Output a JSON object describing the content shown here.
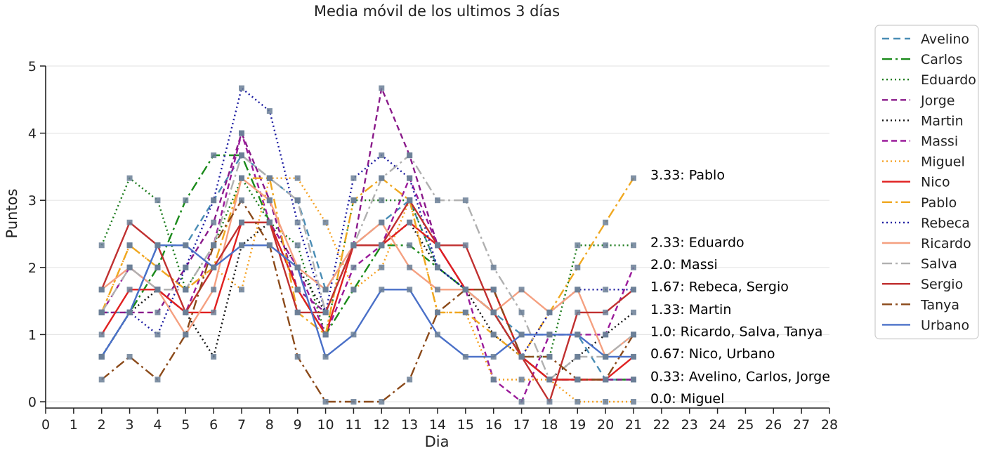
{
  "chart_data": {
    "type": "line",
    "title": "Media móvil de los ultimos 3 días",
    "xlabel": "Dia",
    "ylabel": "Puntos",
    "xlim": [
      0,
      28
    ],
    "ylim": [
      0,
      5
    ],
    "x_ticks": [
      0,
      1,
      2,
      3,
      4,
      5,
      6,
      7,
      8,
      9,
      10,
      11,
      12,
      13,
      14,
      15,
      16,
      17,
      18,
      19,
      20,
      21,
      22,
      23,
      24,
      25,
      26,
      27,
      28
    ],
    "y_ticks": [
      0,
      1,
      2,
      3,
      4,
      5
    ],
    "grid": "horizontal",
    "legend_position": "outside-right",
    "x": [
      2,
      3,
      4,
      5,
      6,
      7,
      8,
      9,
      10,
      11,
      12,
      13,
      14,
      15,
      16,
      17,
      18,
      19,
      20,
      21
    ],
    "series": [
      {
        "name": "Avelino",
        "color": "#4a8db5",
        "dash": "10,6",
        "values": [
          1.33,
          1.33,
          2.33,
          2.33,
          3.0,
          3.67,
          3.33,
          3.0,
          1.67,
          2.33,
          2.67,
          3.0,
          2.0,
          1.67,
          1.33,
          1.0,
          1.0,
          1.0,
          0.33,
          0.33
        ]
      },
      {
        "name": "Carlos",
        "color": "#1a8a1a",
        "dash": "14,5,3,5",
        "values": [
          0.67,
          1.33,
          2.0,
          3.0,
          3.67,
          3.67,
          2.67,
          1.67,
          1.0,
          1.67,
          2.33,
          2.33,
          2.0,
          1.67,
          1.33,
          0.67,
          0.33,
          0.33,
          0.33,
          0.33
        ]
      },
      {
        "name": "Eduardo",
        "color": "#1a7a1a",
        "dash": "2,4",
        "values": [
          2.33,
          3.33,
          3.0,
          1.67,
          2.33,
          3.33,
          2.67,
          2.33,
          1.0,
          3.0,
          3.0,
          3.0,
          2.0,
          1.67,
          1.33,
          0.67,
          0.67,
          2.33,
          2.33,
          2.33
        ]
      },
      {
        "name": "Jorge",
        "color": "#8a1a8a",
        "dash": "8,5",
        "values": [
          1.33,
          1.33,
          1.33,
          2.0,
          2.67,
          4.0,
          3.0,
          1.67,
          1.33,
          2.33,
          4.67,
          3.67,
          2.33,
          1.67,
          1.67,
          0.67,
          0.33,
          0.33,
          0.33,
          0.33
        ]
      },
      {
        "name": "Martin",
        "color": "#111111",
        "dash": "2,4",
        "values": [
          0.67,
          1.33,
          1.67,
          1.33,
          0.67,
          2.33,
          2.67,
          2.0,
          1.33,
          2.33,
          2.33,
          2.67,
          2.0,
          1.67,
          1.0,
          0.67,
          0.33,
          0.67,
          1.0,
          1.33
        ]
      },
      {
        "name": "Massi",
        "color": "#9a1a9a",
        "dash": "8,5",
        "values": [
          1.33,
          2.0,
          1.67,
          1.33,
          2.33,
          4.0,
          2.67,
          2.0,
          1.0,
          2.0,
          2.33,
          3.33,
          2.33,
          1.67,
          0.33,
          0.0,
          1.0,
          1.0,
          1.0,
          2.0
        ]
      },
      {
        "name": "Miguel",
        "color": "#f5a020",
        "dash": "2,4",
        "values": [
          1.33,
          2.33,
          2.0,
          1.67,
          2.0,
          1.67,
          3.33,
          3.33,
          2.67,
          1.67,
          2.0,
          3.0,
          1.33,
          1.33,
          0.33,
          0.33,
          0.33,
          0.0,
          0.0,
          0.0
        ]
      },
      {
        "name": "Nico",
        "color": "#e02020",
        "dash": "",
        "values": [
          1.0,
          1.67,
          1.67,
          1.33,
          1.33,
          2.67,
          2.67,
          1.67,
          1.0,
          2.33,
          2.33,
          2.67,
          2.33,
          1.67,
          1.67,
          0.67,
          0.33,
          0.33,
          0.33,
          0.67
        ]
      },
      {
        "name": "Pablo",
        "color": "#f0a820",
        "dash": "14,5,3,5",
        "values": [
          1.33,
          2.33,
          2.0,
          1.67,
          2.0,
          3.33,
          3.33,
          1.33,
          1.0,
          3.0,
          3.33,
          3.0,
          1.33,
          1.33,
          1.0,
          0.67,
          1.33,
          2.0,
          2.67,
          3.33
        ]
      },
      {
        "name": "Rebeca",
        "color": "#1a1aa0",
        "dash": "2,4",
        "values": [
          0.67,
          1.33,
          1.0,
          2.0,
          3.0,
          4.67,
          4.33,
          2.67,
          1.33,
          3.33,
          3.67,
          3.33,
          2.0,
          1.67,
          1.33,
          0.67,
          1.33,
          1.67,
          1.67,
          1.67
        ]
      },
      {
        "name": "Ricardo",
        "color": "#f5a080",
        "dash": "",
        "values": [
          1.67,
          2.0,
          1.67,
          1.0,
          1.67,
          3.33,
          3.0,
          2.0,
          1.67,
          2.33,
          2.67,
          2.0,
          1.67,
          1.67,
          1.33,
          1.67,
          1.33,
          1.67,
          0.67,
          1.0
        ]
      },
      {
        "name": "Salva",
        "color": "#b0b0b0",
        "dash": "14,5,3,5",
        "values": [
          1.33,
          2.0,
          1.67,
          1.67,
          2.33,
          3.67,
          3.33,
          3.0,
          1.33,
          2.33,
          3.33,
          3.67,
          3.0,
          3.0,
          2.0,
          1.33,
          0.33,
          0.67,
          0.67,
          1.0
        ]
      },
      {
        "name": "Sergio",
        "color": "#c03030",
        "dash": "",
        "values": [
          1.67,
          2.67,
          2.33,
          1.33,
          2.0,
          2.67,
          2.67,
          1.33,
          1.33,
          2.33,
          2.33,
          3.0,
          2.33,
          2.33,
          1.33,
          0.67,
          0.0,
          1.33,
          1.33,
          1.67
        ]
      },
      {
        "name": "Tanya",
        "color": "#8b4a1a",
        "dash": "14,5,3,5",
        "values": [
          0.33,
          0.67,
          0.33,
          1.0,
          2.33,
          3.0,
          2.33,
          0.67,
          0.0,
          0.0,
          0.0,
          0.33,
          1.33,
          1.67,
          1.67,
          0.67,
          0.67,
          0.33,
          0.33,
          1.0
        ]
      },
      {
        "name": "Urbano",
        "color": "#4a70c8",
        "dash": "",
        "values": [
          0.67,
          1.33,
          2.33,
          2.33,
          2.0,
          2.33,
          2.33,
          2.0,
          0.67,
          1.0,
          1.67,
          1.67,
          1.0,
          0.67,
          0.67,
          1.0,
          1.0,
          1.0,
          0.67,
          0.67
        ]
      }
    ],
    "annotations": [
      {
        "text": "3.33: Pablo",
        "y": 3.33
      },
      {
        "text": "2.33: Eduardo",
        "y": 2.33
      },
      {
        "text": "2.0: Massi",
        "y": 2.0
      },
      {
        "text": "1.67: Rebeca, Sergio",
        "y": 1.67
      },
      {
        "text": "1.33: Martin",
        "y": 1.33
      },
      {
        "text": "1.0: Ricardo, Salva, Tanya",
        "y": 1.0
      },
      {
        "text": "0.67: Nico, Urbano",
        "y": 0.67
      },
      {
        "text": "0.33: Avelino, Carlos, Jorge",
        "y": 0.33
      },
      {
        "text": "0.0: Miguel",
        "y": 0.0
      }
    ]
  }
}
